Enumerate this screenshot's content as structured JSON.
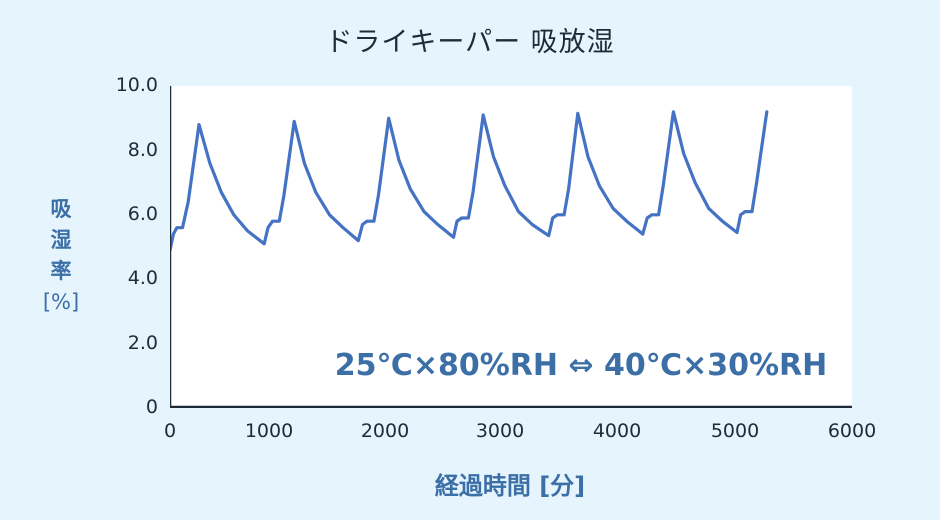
{
  "title": "ドライキーパー 吸放湿",
  "annotation": "25℃×80%RH ⇔ 40℃×30%RH",
  "y_axis": {
    "label_lines": [
      "吸",
      "湿",
      "率"
    ],
    "unit": "[%]",
    "ticks": [
      "10.0",
      "8.0",
      "6.0",
      "4.0",
      "2.0",
      "0"
    ]
  },
  "x_axis": {
    "label": "経過時間 [分]",
    "ticks": [
      "0",
      "1000",
      "2000",
      "3000",
      "4000",
      "5000",
      "6000"
    ]
  },
  "colors": {
    "background": "#e6f5fd",
    "plot_background": "#ffffff",
    "line": "#4472c4",
    "axis": "#1f2b38",
    "label": "#3b6fa6"
  },
  "chart_data": {
    "type": "line",
    "title": "ドライキーパー 吸放湿",
    "xlabel": "経過時間 [分]",
    "ylabel": "吸湿率 [%]",
    "xlim": [
      0,
      6000
    ],
    "ylim": [
      0,
      10
    ],
    "x_ticks": [
      0,
      1000,
      2000,
      3000,
      4000,
      5000,
      6000
    ],
    "y_ticks": [
      0,
      2.0,
      4.0,
      6.0,
      8.0,
      10.0
    ],
    "grid": false,
    "legend": null,
    "annotations": [
      "25℃×80%RH ⇔ 40℃×30%RH"
    ],
    "series": [
      {
        "name": "吸湿率",
        "x": [
          0,
          30,
          60,
          110,
          160,
          255,
          350,
          450,
          560,
          680,
          827,
          860,
          900,
          960,
          1000,
          1090,
          1180,
          1280,
          1400,
          1520,
          1653,
          1690,
          1730,
          1790,
          1830,
          1920,
          2010,
          2110,
          2230,
          2350,
          2489,
          2520,
          2560,
          2620,
          2660,
          2750,
          2840,
          2940,
          3060,
          3180,
          3325,
          3360,
          3400,
          3460,
          3500,
          3580,
          3670,
          3770,
          3890,
          4010,
          4151,
          4190,
          4230,
          4290,
          4330,
          4420,
          4510,
          4610,
          4730,
          4850,
          4978,
          5010,
          5050,
          5110,
          5150,
          5240
        ],
        "y": [
          4.9,
          5.4,
          5.6,
          5.6,
          6.4,
          8.8,
          7.6,
          6.7,
          6.0,
          5.5,
          5.1,
          5.6,
          5.8,
          5.8,
          6.6,
          8.9,
          7.6,
          6.7,
          6.0,
          5.6,
          5.2,
          5.7,
          5.8,
          5.8,
          6.6,
          9.0,
          7.7,
          6.8,
          6.1,
          5.7,
          5.3,
          5.8,
          5.9,
          5.9,
          6.7,
          9.1,
          7.8,
          6.9,
          6.1,
          5.7,
          5.35,
          5.9,
          6.0,
          6.0,
          6.8,
          9.15,
          7.8,
          6.9,
          6.2,
          5.8,
          5.4,
          5.9,
          6.0,
          6.0,
          6.9,
          9.2,
          7.9,
          7.0,
          6.2,
          5.8,
          5.45,
          6.0,
          6.1,
          6.1,
          7.0,
          9.2
        ]
      }
    ]
  }
}
